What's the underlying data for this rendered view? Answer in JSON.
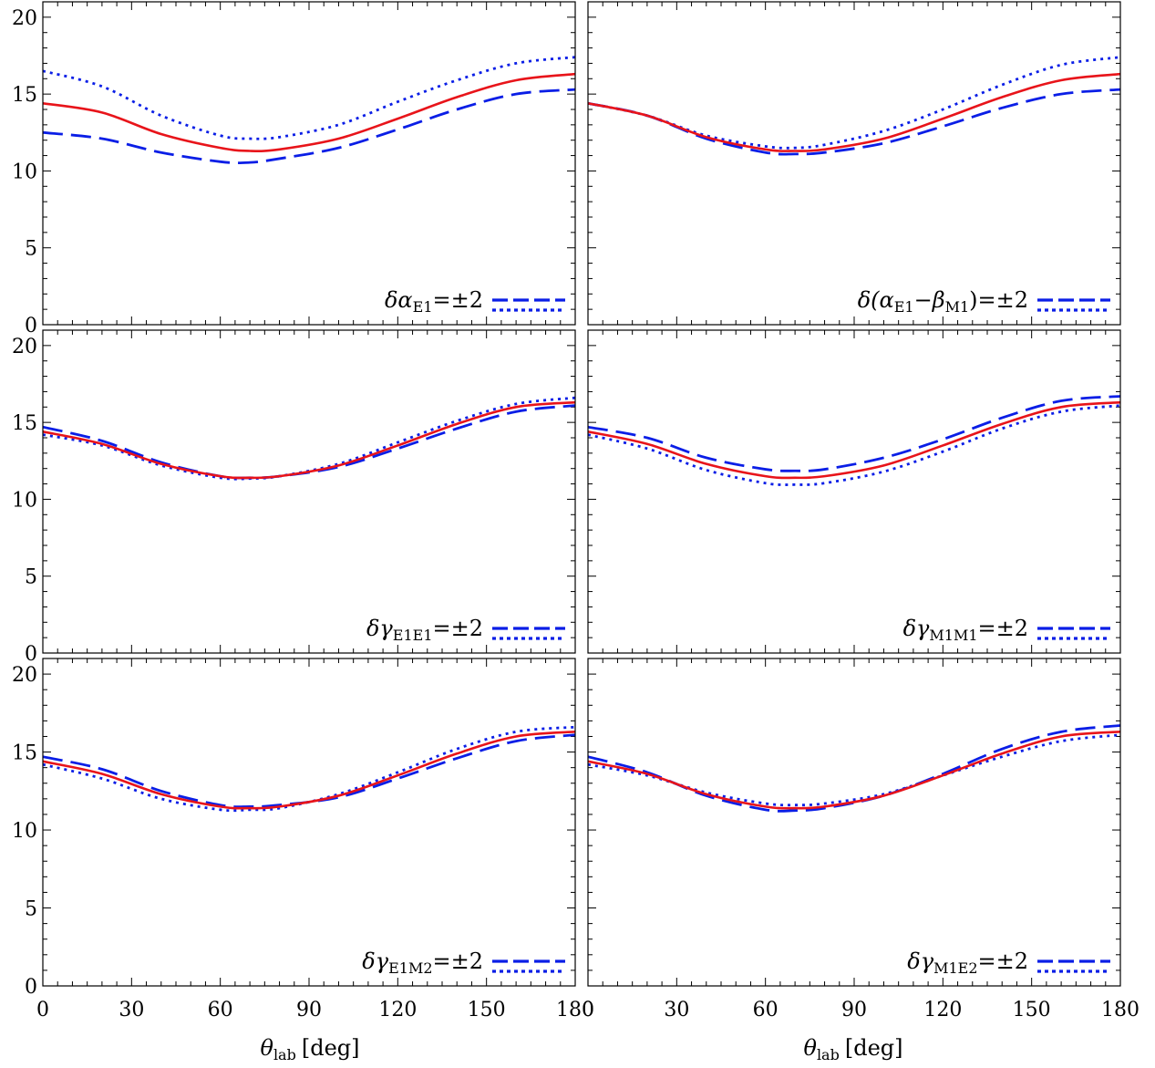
{
  "chart_data": {
    "type": "line",
    "xlabel": "θ",
    "xlabel_sub": "lab",
    "xlabel_unit": "[deg]",
    "xlim": [
      0,
      180
    ],
    "ylim": [
      0,
      21
    ],
    "xticks": [
      "0",
      "30",
      "60",
      "90",
      "120",
      "150",
      "180"
    ],
    "yticks": [
      "0",
      "5",
      "10",
      "15",
      "20"
    ],
    "grid": false,
    "colors": {
      "central": "#e8141a",
      "variation": "#0a1ee6"
    },
    "panels": [
      {
        "legend": {
          "symbol": "δα",
          "sub": "E1",
          "suffix": "=±2"
        },
        "x": [
          0,
          20,
          40,
          60,
          70,
          80,
          100,
          120,
          140,
          160,
          180
        ],
        "series": [
          {
            "style": "solid",
            "y": [
              14.4,
              13.8,
              12.4,
              11.5,
              11.3,
              11.4,
              12.1,
              13.4,
              14.8,
              15.9,
              16.3
            ]
          },
          {
            "style": "dashed",
            "y": [
              12.5,
              12.1,
              11.2,
              10.6,
              10.55,
              10.8,
              11.5,
              12.7,
              14.0,
              15.0,
              15.3
            ]
          },
          {
            "style": "dotted",
            "y": [
              16.5,
              15.5,
              13.6,
              12.3,
              12.1,
              12.2,
              13.0,
              14.5,
              15.9,
              17.0,
              17.4
            ]
          }
        ]
      },
      {
        "legend": {
          "symbol": "δ(α",
          "sub": "E1",
          "mid": "−β",
          "sub2": "M1",
          "suffix": ")=±2"
        },
        "x": [
          0,
          20,
          40,
          60,
          70,
          80,
          100,
          120,
          140,
          160,
          180
        ],
        "series": [
          {
            "style": "solid",
            "y": [
              14.4,
              13.6,
              12.2,
              11.4,
              11.3,
              11.4,
              12.1,
              13.4,
              14.8,
              15.9,
              16.3
            ]
          },
          {
            "style": "dashed",
            "y": [
              14.4,
              13.6,
              12.1,
              11.2,
              11.1,
              11.2,
              11.8,
              12.9,
              14.1,
              15.0,
              15.3
            ]
          },
          {
            "style": "dotted",
            "y": [
              14.4,
              13.6,
              12.3,
              11.6,
              11.5,
              11.7,
              12.6,
              14.0,
              15.6,
              16.9,
              17.4
            ]
          }
        ]
      },
      {
        "legend": {
          "symbol": "δγ",
          "sub": "E1E1",
          "suffix": "=±2"
        },
        "x": [
          0,
          20,
          40,
          60,
          70,
          80,
          100,
          120,
          140,
          160,
          180
        ],
        "series": [
          {
            "style": "solid",
            "y": [
              14.4,
              13.6,
              12.3,
              11.5,
              11.4,
              11.5,
              12.2,
              13.5,
              14.9,
              16.0,
              16.3
            ]
          },
          {
            "style": "dashed",
            "y": [
              14.7,
              13.8,
              12.4,
              11.5,
              11.4,
              11.5,
              12.1,
              13.3,
              14.6,
              15.7,
              16.1
            ]
          },
          {
            "style": "dotted",
            "y": [
              14.2,
              13.5,
              12.2,
              11.4,
              11.35,
              11.5,
              12.3,
              13.7,
              15.1,
              16.2,
              16.6
            ]
          }
        ]
      },
      {
        "legend": {
          "symbol": "δγ",
          "sub": "M1M1",
          "suffix": "=±2"
        },
        "x": [
          0,
          20,
          40,
          60,
          70,
          80,
          100,
          120,
          140,
          160,
          180
        ],
        "series": [
          {
            "style": "solid",
            "y": [
              14.4,
              13.6,
              12.3,
              11.5,
              11.4,
              11.5,
              12.2,
              13.5,
              14.9,
              16.0,
              16.3
            ]
          },
          {
            "style": "dashed",
            "y": [
              14.7,
              14.0,
              12.7,
              11.95,
              11.85,
              11.95,
              12.7,
              13.9,
              15.3,
              16.4,
              16.7
            ]
          },
          {
            "style": "dotted",
            "y": [
              14.2,
              13.3,
              11.9,
              11.05,
              10.95,
              11.05,
              11.8,
              13.1,
              14.6,
              15.7,
              16.1
            ]
          }
        ]
      },
      {
        "legend": {
          "symbol": "δγ",
          "sub": "E1M2",
          "suffix": "=±2"
        },
        "x": [
          0,
          20,
          40,
          60,
          70,
          80,
          100,
          120,
          140,
          160,
          180
        ],
        "series": [
          {
            "style": "solid",
            "y": [
              14.4,
              13.6,
              12.3,
              11.5,
              11.4,
              11.5,
              12.2,
              13.5,
              14.9,
              16.0,
              16.3
            ]
          },
          {
            "style": "dashed",
            "y": [
              14.7,
              13.9,
              12.5,
              11.6,
              11.5,
              11.6,
              12.1,
              13.3,
              14.6,
              15.7,
              16.1
            ]
          },
          {
            "style": "dotted",
            "y": [
              14.2,
              13.3,
              12.0,
              11.3,
              11.3,
              11.4,
              12.3,
              13.7,
              15.2,
              16.3,
              16.6
            ]
          }
        ]
      },
      {
        "legend": {
          "symbol": "δγ",
          "sub": "M1E2",
          "suffix": "=±2"
        },
        "x": [
          0,
          20,
          40,
          60,
          70,
          80,
          100,
          120,
          140,
          160,
          180
        ],
        "series": [
          {
            "style": "solid",
            "y": [
              14.4,
              13.6,
              12.3,
              11.5,
              11.4,
              11.5,
              12.2,
              13.5,
              14.9,
              16.0,
              16.3
            ]
          },
          {
            "style": "dashed",
            "y": [
              14.7,
              13.7,
              12.2,
              11.3,
              11.25,
              11.4,
              12.2,
              13.6,
              15.2,
              16.3,
              16.7
            ]
          },
          {
            "style": "dotted",
            "y": [
              14.2,
              13.5,
              12.4,
              11.7,
              11.6,
              11.7,
              12.3,
              13.5,
              14.7,
              15.7,
              16.1
            ]
          }
        ]
      }
    ]
  }
}
